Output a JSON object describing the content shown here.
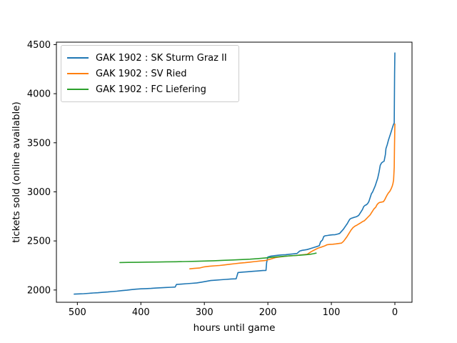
{
  "figure": {
    "background": "#ffffff",
    "text_color": "#000000",
    "spine_color": "#000000"
  },
  "chart_data": {
    "type": "line",
    "title": "",
    "xlabel": "hours until game",
    "ylabel": "tickets sold (online available)",
    "grid": false,
    "legend_position": "upper left",
    "x_axis": {
      "ticks": [
        500,
        400,
        300,
        200,
        100,
        0
      ],
      "tick_labels": [
        "500",
        "400",
        "300",
        "200",
        "100",
        "0"
      ],
      "reversed": true,
      "range": [
        533,
        -27
      ]
    },
    "y_axis": {
      "ticks": [
        2000,
        2500,
        3000,
        3500,
        4000,
        4500
      ],
      "tick_labels": [
        "2000",
        "2500",
        "3000",
        "3500",
        "4000",
        "4500"
      ],
      "range": [
        1875,
        4525
      ]
    },
    "series": [
      {
        "name": "GAK 1902 : SK Sturm Graz II",
        "color": "#1f77b4",
        "points": [
          [
            505,
            1958
          ],
          [
            498,
            1960
          ],
          [
            490,
            1962
          ],
          [
            482,
            1966
          ],
          [
            475,
            1970
          ],
          [
            468,
            1972
          ],
          [
            460,
            1976
          ],
          [
            452,
            1980
          ],
          [
            445,
            1984
          ],
          [
            438,
            1988
          ],
          [
            430,
            1994
          ],
          [
            422,
            1998
          ],
          [
            415,
            2004
          ],
          [
            408,
            2008
          ],
          [
            400,
            2012
          ],
          [
            392,
            2014
          ],
          [
            384,
            2016
          ],
          [
            376,
            2020
          ],
          [
            368,
            2023
          ],
          [
            360,
            2026
          ],
          [
            352,
            2028
          ],
          [
            346,
            2030
          ],
          [
            344,
            2056
          ],
          [
            336,
            2060
          ],
          [
            328,
            2064
          ],
          [
            320,
            2068
          ],
          [
            312,
            2072
          ],
          [
            304,
            2080
          ],
          [
            297,
            2088
          ],
          [
            290,
            2096
          ],
          [
            282,
            2100
          ],
          [
            274,
            2104
          ],
          [
            266,
            2108
          ],
          [
            258,
            2112
          ],
          [
            250,
            2114
          ],
          [
            247,
            2178
          ],
          [
            240,
            2182
          ],
          [
            232,
            2186
          ],
          [
            224,
            2190
          ],
          [
            216,
            2194
          ],
          [
            208,
            2198
          ],
          [
            203,
            2200
          ],
          [
            202,
            2280
          ],
          [
            200,
            2336
          ],
          [
            196,
            2344
          ],
          [
            190,
            2350
          ],
          [
            184,
            2354
          ],
          [
            178,
            2358
          ],
          [
            172,
            2360
          ],
          [
            166,
            2364
          ],
          [
            160,
            2368
          ],
          [
            154,
            2372
          ],
          [
            150,
            2396
          ],
          [
            146,
            2404
          ],
          [
            142,
            2408
          ],
          [
            138,
            2412
          ],
          [
            134,
            2420
          ],
          [
            130,
            2428
          ],
          [
            126,
            2436
          ],
          [
            122,
            2444
          ],
          [
            119,
            2452
          ],
          [
            117,
            2490
          ],
          [
            114,
            2510
          ],
          [
            112,
            2545
          ],
          [
            110,
            2552
          ],
          [
            106,
            2556
          ],
          [
            102,
            2560
          ],
          [
            98,
            2562
          ],
          [
            94,
            2564
          ],
          [
            90,
            2570
          ],
          [
            87,
            2576
          ],
          [
            84,
            2598
          ],
          [
            81,
            2620
          ],
          [
            78,
            2648
          ],
          [
            75,
            2676
          ],
          [
            73,
            2700
          ],
          [
            71,
            2720
          ],
          [
            69,
            2730
          ],
          [
            66,
            2736
          ],
          [
            63,
            2742
          ],
          [
            60,
            2748
          ],
          [
            57,
            2760
          ],
          [
            54,
            2790
          ],
          [
            51,
            2820
          ],
          [
            49,
            2850
          ],
          [
            47,
            2862
          ],
          [
            45,
            2868
          ],
          [
            43,
            2880
          ],
          [
            41,
            2900
          ],
          [
            39,
            2940
          ],
          [
            37,
            2980
          ],
          [
            35,
            3000
          ],
          [
            33,
            3030
          ],
          [
            31,
            3060
          ],
          [
            29,
            3100
          ],
          [
            27,
            3140
          ],
          [
            25,
            3200
          ],
          [
            23,
            3270
          ],
          [
            21,
            3295
          ],
          [
            19,
            3305
          ],
          [
            17,
            3312
          ],
          [
            15,
            3380
          ],
          [
            14,
            3440
          ],
          [
            12,
            3480
          ],
          [
            10,
            3530
          ],
          [
            8,
            3570
          ],
          [
            6,
            3610
          ],
          [
            4,
            3650
          ],
          [
            3,
            3670
          ],
          [
            2,
            3690
          ],
          [
            1,
            3700
          ],
          [
            0.8,
            3900
          ],
          [
            0.4,
            4200
          ],
          [
            0,
            4415
          ]
        ]
      },
      {
        "name": "GAK 1902 : SV Ried",
        "color": "#ff7f0e",
        "points": [
          [
            323,
            2216
          ],
          [
            316,
            2220
          ],
          [
            308,
            2224
          ],
          [
            300,
            2236
          ],
          [
            292,
            2242
          ],
          [
            284,
            2246
          ],
          [
            276,
            2250
          ],
          [
            268,
            2256
          ],
          [
            260,
            2262
          ],
          [
            252,
            2268
          ],
          [
            244,
            2274
          ],
          [
            236,
            2278
          ],
          [
            228,
            2284
          ],
          [
            220,
            2290
          ],
          [
            212,
            2296
          ],
          [
            204,
            2300
          ],
          [
            196,
            2315
          ],
          [
            188,
            2330
          ],
          [
            180,
            2338
          ],
          [
            172,
            2344
          ],
          [
            164,
            2348
          ],
          [
            156,
            2352
          ],
          [
            150,
            2356
          ],
          [
            144,
            2360
          ],
          [
            138,
            2364
          ],
          [
            132,
            2390
          ],
          [
            126,
            2410
          ],
          [
            121,
            2426
          ],
          [
            116,
            2436
          ],
          [
            111,
            2448
          ],
          [
            107,
            2460
          ],
          [
            103,
            2464
          ],
          [
            98,
            2466
          ],
          [
            93,
            2470
          ],
          [
            88,
            2474
          ],
          [
            84,
            2478
          ],
          [
            81,
            2495
          ],
          [
            78,
            2520
          ],
          [
            75,
            2548
          ],
          [
            72,
            2580
          ],
          [
            69,
            2610
          ],
          [
            66,
            2635
          ],
          [
            63,
            2650
          ],
          [
            60,
            2660
          ],
          [
            57,
            2672
          ],
          [
            54,
            2684
          ],
          [
            51,
            2696
          ],
          [
            48,
            2706
          ],
          [
            45,
            2725
          ],
          [
            42,
            2745
          ],
          [
            39,
            2765
          ],
          [
            36,
            2795
          ],
          [
            33,
            2825
          ],
          [
            30,
            2845
          ],
          [
            28,
            2870
          ],
          [
            26,
            2885
          ],
          [
            24,
            2892
          ],
          [
            21,
            2896
          ],
          [
            18,
            2900
          ],
          [
            16,
            2920
          ],
          [
            14,
            2945
          ],
          [
            12,
            2970
          ],
          [
            10,
            2990
          ],
          [
            8,
            3005
          ],
          [
            6,
            3030
          ],
          [
            4,
            3060
          ],
          [
            3,
            3085
          ],
          [
            2,
            3120
          ],
          [
            1,
            3250
          ],
          [
            0.5,
            3480
          ],
          [
            0,
            3690
          ]
        ]
      },
      {
        "name": "GAK 1902 : FC Liefering",
        "color": "#2ca02c",
        "points": [
          [
            433,
            2280
          ],
          [
            420,
            2281
          ],
          [
            405,
            2282
          ],
          [
            390,
            2284
          ],
          [
            375,
            2285
          ],
          [
            360,
            2287
          ],
          [
            345,
            2288
          ],
          [
            330,
            2290
          ],
          [
            315,
            2292
          ],
          [
            300,
            2295
          ],
          [
            285,
            2298
          ],
          [
            270,
            2302
          ],
          [
            255,
            2306
          ],
          [
            240,
            2310
          ],
          [
            228,
            2314
          ],
          [
            216,
            2320
          ],
          [
            205,
            2326
          ],
          [
            195,
            2332
          ],
          [
            185,
            2338
          ],
          [
            175,
            2343
          ],
          [
            165,
            2348
          ],
          [
            155,
            2352
          ],
          [
            147,
            2356
          ],
          [
            140,
            2360
          ],
          [
            133,
            2364
          ],
          [
            128,
            2370
          ],
          [
            124,
            2376
          ]
        ]
      }
    ]
  }
}
